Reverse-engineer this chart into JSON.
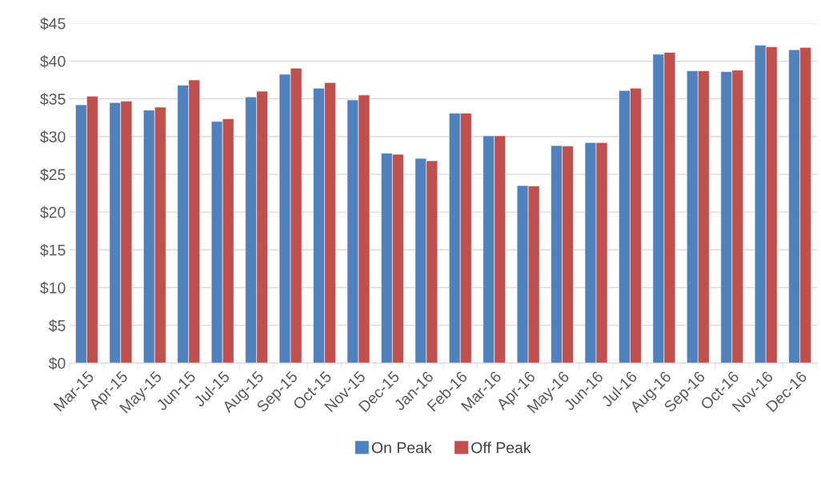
{
  "chart_data": {
    "type": "bar",
    "categories": [
      "Mar-15",
      "Apr-15",
      "May-15",
      "Jun-15",
      "Jul-15",
      "Aug-15",
      "Sep-15",
      "Oct-15",
      "Nov-15",
      "Dec-15",
      "Jan-16",
      "Feb-16",
      "Mar-16",
      "Apr-16",
      "May-16",
      "Jun-16",
      "Jul-16",
      "Aug-16",
      "Sep-16",
      "Oct-16",
      "Nov-16",
      "Dec-16"
    ],
    "series": [
      {
        "name": "On Peak",
        "color": "#4f81bd",
        "values": [
          34.2,
          34.5,
          33.5,
          36.8,
          32.0,
          35.25,
          38.25,
          36.4,
          34.85,
          27.8,
          27.1,
          33.1,
          30.1,
          23.5,
          28.8,
          29.2,
          36.1,
          40.9,
          38.7,
          38.6,
          42.1,
          41.5
        ]
      },
      {
        "name": "Off Peak",
        "color": "#c0504d",
        "values": [
          35.35,
          34.7,
          33.9,
          37.5,
          32.35,
          36.0,
          39.05,
          37.15,
          35.5,
          27.65,
          26.8,
          33.1,
          30.1,
          23.45,
          28.75,
          29.2,
          36.4,
          41.15,
          38.7,
          38.8,
          41.9,
          41.8
        ]
      }
    ],
    "ylim": [
      0,
      45
    ],
    "yticks": [
      {
        "value": 0,
        "label": "$0"
      },
      {
        "value": 5,
        "label": "$5"
      },
      {
        "value": 10,
        "label": "$10"
      },
      {
        "value": 15,
        "label": "$15"
      },
      {
        "value": 20,
        "label": "$20"
      },
      {
        "value": 25,
        "label": "$25"
      },
      {
        "value": 30,
        "label": "$30"
      },
      {
        "value": 35,
        "label": "$35"
      },
      {
        "value": 40,
        "label": "$40"
      },
      {
        "value": 45,
        "label": "$45"
      }
    ],
    "grid": "y",
    "legend": "bottom"
  }
}
